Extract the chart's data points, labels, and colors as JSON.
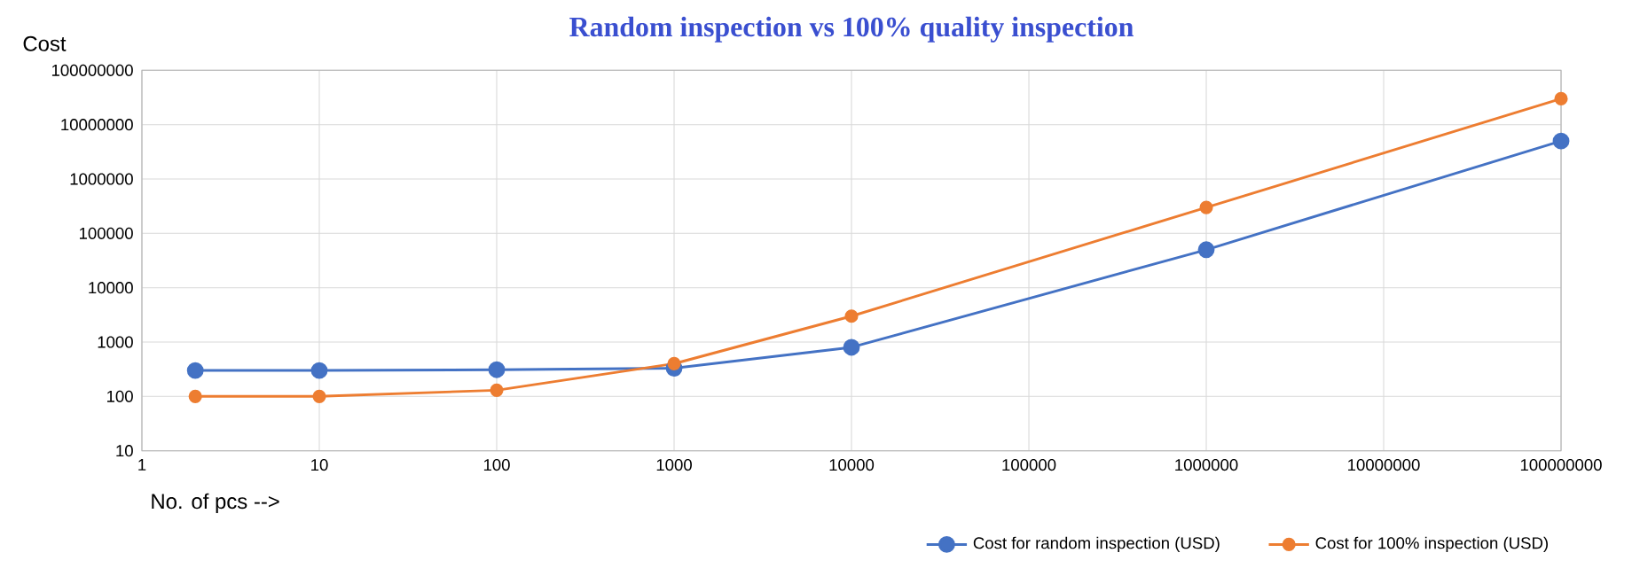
{
  "chart_data": {
    "type": "line",
    "title": "Random inspection vs 100% quality inspection",
    "xlabel": "No. of pcs -->",
    "ylabel": "Cost",
    "x": [
      2,
      10,
      100,
      1000,
      10000,
      1000000,
      100000000
    ],
    "series": [
      {
        "name": "Cost for random inspection (USD)",
        "color": "#4472c4",
        "values": [
          300,
          300,
          310,
          330,
          800,
          50000,
          5000000
        ]
      },
      {
        "name": "Cost for 100% inspection (USD)",
        "color": "#ed7d31",
        "values": [
          100,
          100,
          130,
          400,
          3000,
          300000,
          30000000
        ]
      }
    ],
    "log": "xy",
    "xlim": [
      1,
      100000000
    ],
    "ylim": [
      10,
      100000000
    ],
    "xticks": [
      1,
      10,
      100,
      1000,
      10000,
      100000,
      1000000,
      10000000,
      100000000
    ],
    "yticks": [
      10,
      100,
      1000,
      10000,
      100000,
      1000000,
      10000000,
      100000000
    ],
    "grid": true,
    "legend": "bottom right",
    "marker": "circle",
    "line_style": "solid"
  }
}
